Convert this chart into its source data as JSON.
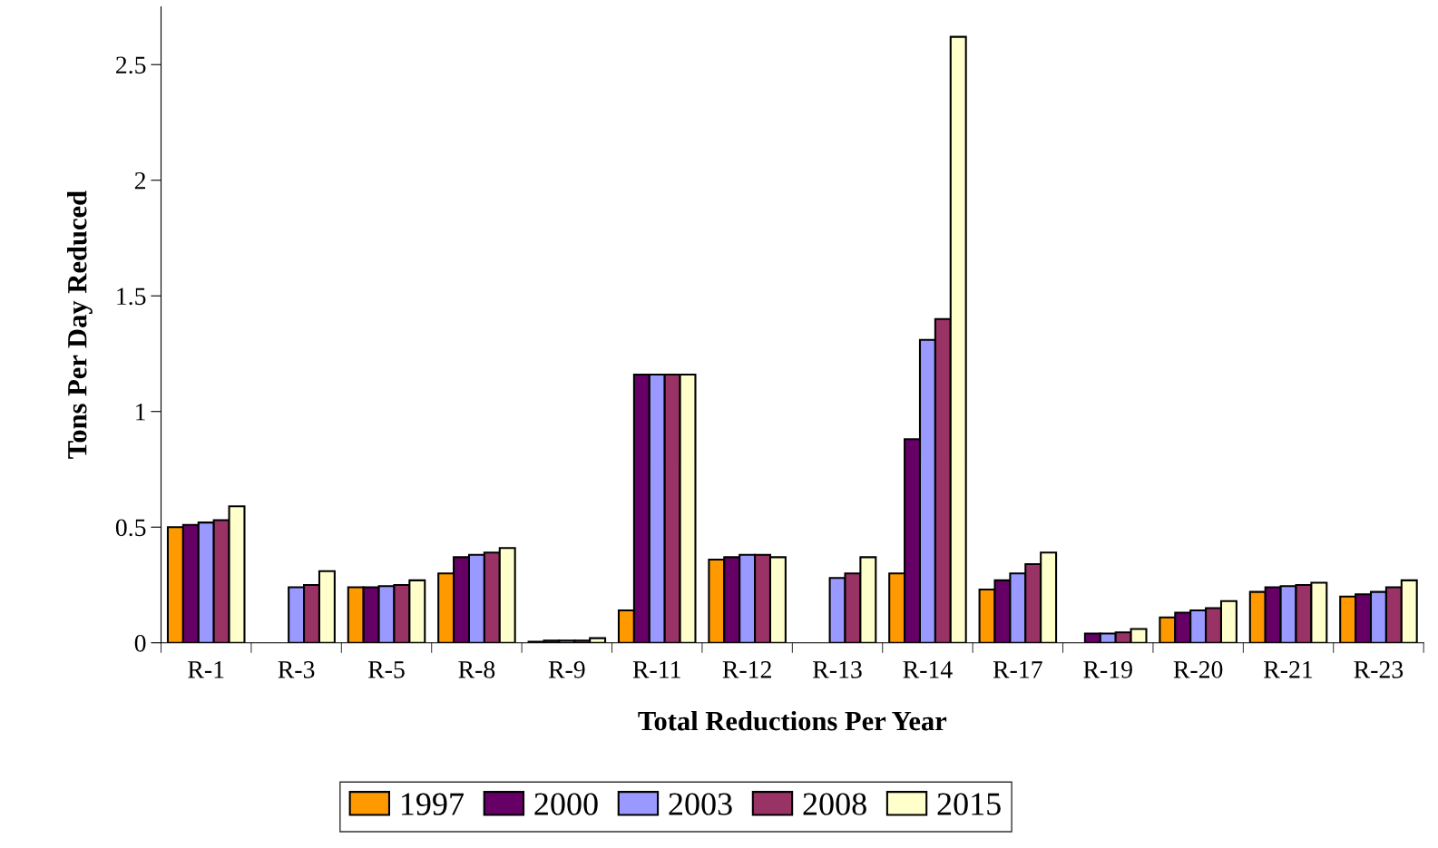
{
  "chart_data": {
    "type": "bar",
    "xlabel": "Total Reductions Per Year",
    "ylabel": "Tons Per Day Reduced",
    "categories": [
      "R-1",
      "R-3",
      "R-5",
      "R-8",
      "R-9",
      "R-11",
      "R-12",
      "R-13",
      "R-14",
      "R-17",
      "R-19",
      "R-20",
      "R-21",
      "R-23"
    ],
    "series": [
      {
        "name": "1997",
        "color": "#ff9900",
        "values": [
          0.5,
          null,
          0.24,
          0.3,
          0.005,
          0.14,
          0.36,
          null,
          0.3,
          0.23,
          null,
          0.11,
          0.22,
          0.2
        ]
      },
      {
        "name": "2000",
        "color": "#660066",
        "values": [
          0.51,
          null,
          0.24,
          0.37,
          0.01,
          1.16,
          0.37,
          null,
          0.88,
          0.27,
          0.04,
          0.13,
          0.24,
          0.21
        ]
      },
      {
        "name": "2003",
        "color": "#9999ff",
        "values": [
          0.52,
          0.24,
          0.245,
          0.38,
          0.01,
          1.16,
          0.38,
          0.28,
          1.31,
          0.3,
          0.04,
          0.14,
          0.245,
          0.22
        ]
      },
      {
        "name": "2008",
        "color": "#993366",
        "values": [
          0.53,
          0.25,
          0.25,
          0.39,
          0.01,
          1.16,
          0.38,
          0.3,
          1.4,
          0.34,
          0.045,
          0.15,
          0.25,
          0.24
        ]
      },
      {
        "name": "2015",
        "color": "#ffffcc",
        "values": [
          0.59,
          0.31,
          0.27,
          0.41,
          0.02,
          1.16,
          0.37,
          0.37,
          2.62,
          0.39,
          0.06,
          0.18,
          0.26,
          0.27
        ]
      }
    ],
    "ylim": [
      0,
      2.75
    ],
    "yticks": [
      0,
      0.5,
      1,
      1.5,
      2,
      2.5
    ],
    "grid": false,
    "legend": "bottom"
  }
}
